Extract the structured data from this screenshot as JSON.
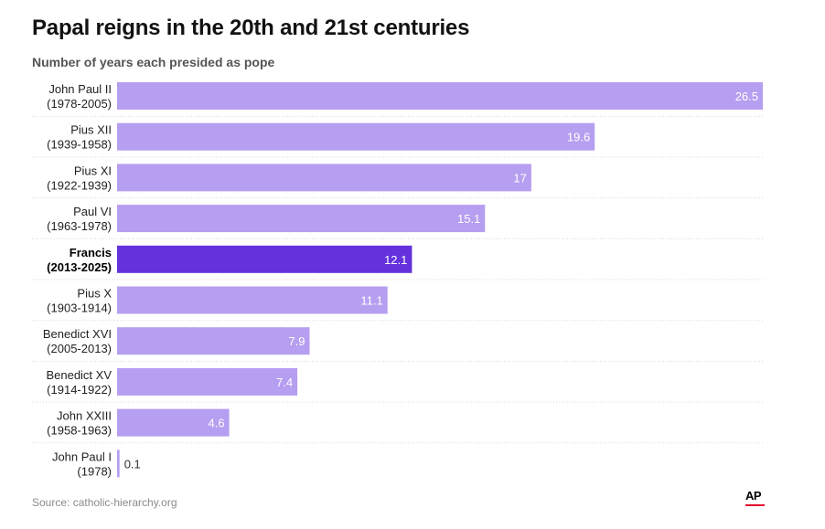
{
  "header": {
    "title": "Papal reigns in the 20th and 21st centuries",
    "subtitle": "Number of years each presided as pope"
  },
  "footer": {
    "source": "Source: catholic-hierarchy.org",
    "logo_text": "AP"
  },
  "colors": {
    "bar": "#b69ef0",
    "bar_highlight": "#6431dc",
    "value_label_inside": "#ffffff",
    "value_label_outside": "#333333",
    "gridline": "#d9d9d9"
  },
  "chart_data": {
    "type": "bar",
    "orientation": "horizontal",
    "title": "Papal reigns in the 20th and 21st centuries",
    "subtitle": "Number of years each presided as pope",
    "xlim": [
      0,
      26.5
    ],
    "grid": false,
    "legend": "none",
    "categories": [
      {
        "name": "John Paul II",
        "years": "(1978-2005)",
        "value": 26.5,
        "label": "26.5",
        "highlight": false
      },
      {
        "name": "Pius XII",
        "years": "(1939-1958)",
        "value": 19.6,
        "label": "19.6",
        "highlight": false
      },
      {
        "name": "Pius XI",
        "years": "(1922-1939)",
        "value": 17,
        "label": "17",
        "highlight": false
      },
      {
        "name": "Paul VI",
        "years": "(1963-1978)",
        "value": 15.1,
        "label": "15.1",
        "highlight": false
      },
      {
        "name": "Francis",
        "years": "(2013-2025)",
        "value": 12.1,
        "label": "12.1",
        "highlight": true
      },
      {
        "name": "Pius X",
        "years": "(1903-1914)",
        "value": 11.1,
        "label": "11.1",
        "highlight": false
      },
      {
        "name": "Benedict XVI",
        "years": "(2005-2013)",
        "value": 7.9,
        "label": "7.9",
        "highlight": false
      },
      {
        "name": "Benedict XV",
        "years": "(1914-1922)",
        "value": 7.4,
        "label": "7.4",
        "highlight": false
      },
      {
        "name": "John XXIII",
        "years": "(1958-1963)",
        "value": 4.6,
        "label": "4.6",
        "highlight": false
      },
      {
        "name": "John Paul I",
        "years": "(1978)",
        "value": 0.1,
        "label": "0.1",
        "highlight": false
      }
    ]
  }
}
